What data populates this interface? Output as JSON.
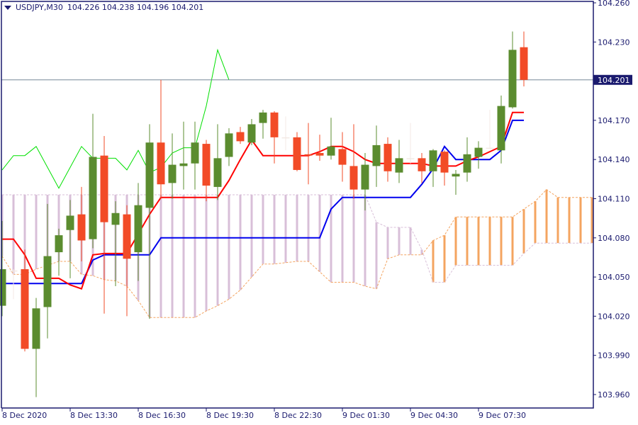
{
  "header": {
    "symbol_timeframe": "USDJPY,M30",
    "ohlc": "104.226 104.238 104.196 104.201"
  },
  "colors": {
    "frame": "#1a1a6e",
    "bull": "#5b8c2f",
    "bear": "#f24b27",
    "doji": "#f3e9e4",
    "tenkan": "#ff0000",
    "kijun": "#0000ee",
    "chikou": "#00e000",
    "span_a": "#f4a460",
    "span_b": "#d8bfd8",
    "price_line": "#778899",
    "price_label_bg": "#1a1a6e"
  },
  "chart_data": {
    "type": "candlestick",
    "ylim": [
      103.955,
      104.262
    ],
    "y_ticks": [
      "104.260",
      "104.230",
      "104.170",
      "104.140",
      "104.110",
      "104.080",
      "104.050",
      "104.020",
      "103.990",
      "103.960"
    ],
    "current_price": "104.201",
    "x_labels": [
      {
        "bar": 0,
        "label": "8 Dec 2020"
      },
      {
        "bar": 6,
        "label": "8 Dec 13:30"
      },
      {
        "bar": 12,
        "label": "8 Dec 16:30"
      },
      {
        "bar": 18,
        "label": "8 Dec 19:30"
      },
      {
        "bar": 24,
        "label": "8 Dec 22:30"
      },
      {
        "bar": 30,
        "label": "9 Dec 01:30"
      },
      {
        "bar": 36,
        "label": "9 Dec 04:30"
      },
      {
        "bar": 42,
        "label": "9 Dec 07:30"
      }
    ],
    "candles": [
      [
        104.028,
        104.093,
        104.02,
        104.056
      ],
      [
        104.055,
        104.056,
        104.033,
        104.055
      ],
      [
        104.056,
        104.071,
        103.993,
        103.995
      ],
      [
        103.995,
        104.034,
        103.958,
        104.026
      ],
      [
        104.027,
        104.106,
        104.003,
        104.066
      ],
      [
        104.069,
        104.087,
        104.051,
        104.082
      ],
      [
        104.086,
        104.109,
        104.049,
        104.097
      ],
      [
        104.098,
        104.119,
        104.062,
        104.078
      ],
      [
        104.079,
        104.175,
        104.072,
        104.142
      ],
      [
        104.143,
        104.158,
        104.022,
        104.092
      ],
      [
        104.09,
        104.108,
        104.043,
        104.099
      ],
      [
        104.098,
        104.105,
        104.02,
        104.064
      ],
      [
        104.069,
        104.122,
        104.047,
        104.105
      ],
      [
        104.103,
        104.167,
        104.018,
        104.153
      ],
      [
        104.153,
        104.201,
        104.11,
        104.121
      ],
      [
        104.122,
        104.16,
        104.11,
        104.136
      ],
      [
        104.135,
        104.169,
        104.117,
        104.137
      ],
      [
        104.137,
        104.169,
        104.117,
        104.153
      ],
      [
        104.152,
        104.155,
        104.108,
        104.12
      ],
      [
        104.119,
        104.167,
        104.109,
        104.141
      ],
      [
        104.142,
        104.164,
        104.135,
        104.16
      ],
      [
        104.161,
        104.165,
        104.152,
        104.154
      ],
      [
        104.153,
        104.171,
        104.151,
        104.167
      ],
      [
        104.168,
        104.178,
        104.156,
        104.176
      ],
      [
        104.176,
        104.177,
        104.137,
        104.157
      ],
      [
        104.157,
        104.173,
        104.147,
        104.157
      ],
      [
        104.157,
        104.161,
        104.131,
        104.132
      ],
      [
        104.144,
        104.168,
        104.121,
        104.143
      ],
      [
        104.145,
        104.159,
        104.139,
        104.143
      ],
      [
        104.143,
        104.172,
        104.14,
        104.15
      ],
      [
        104.148,
        104.161,
        104.123,
        104.136
      ],
      [
        104.135,
        104.167,
        104.11,
        104.117
      ],
      [
        104.117,
        104.145,
        104.101,
        104.136
      ],
      [
        104.135,
        104.166,
        104.119,
        104.151
      ],
      [
        104.152,
        104.157,
        104.123,
        104.131
      ],
      [
        104.13,
        104.155,
        104.122,
        104.141
      ],
      [
        104.141,
        104.168,
        104.137,
        104.141
      ],
      [
        104.141,
        104.145,
        104.122,
        104.131
      ],
      [
        104.131,
        104.148,
        104.119,
        104.147
      ],
      [
        104.146,
        104.147,
        104.12,
        104.13
      ],
      [
        104.127,
        104.132,
        104.113,
        104.129
      ],
      [
        104.13,
        104.157,
        104.123,
        104.144
      ],
      [
        104.142,
        104.154,
        104.133,
        104.149
      ],
      [
        104.149,
        104.178,
        104.148,
        104.149
      ],
      [
        104.147,
        104.189,
        104.137,
        104.181
      ],
      [
        104.18,
        104.238,
        104.179,
        104.224
      ],
      [
        104.226,
        104.238,
        104.196,
        104.201
      ]
    ],
    "tenkan_sen": [
      104.079,
      104.079,
      104.067,
      104.049,
      104.049,
      104.049,
      104.044,
      104.041,
      104.067,
      104.068,
      104.068,
      104.068,
      104.083,
      104.098,
      104.111,
      104.111,
      104.111,
      104.111,
      104.111,
      104.111,
      104.124,
      104.14,
      104.155,
      104.143,
      104.143,
      104.143,
      104.143,
      104.143,
      104.146,
      104.15,
      104.15,
      104.146,
      104.14,
      104.137,
      104.137,
      104.137,
      104.137,
      104.137,
      104.135,
      104.135,
      104.135,
      104.139,
      104.142,
      104.146,
      104.15,
      104.176,
      104.176
    ],
    "kijun_sen": [
      104.045,
      104.045,
      104.045,
      104.045,
      104.045,
      104.045,
      104.045,
      104.045,
      104.063,
      104.067,
      104.067,
      104.067,
      104.067,
      104.067,
      104.08,
      104.08,
      104.08,
      104.08,
      104.08,
      104.08,
      104.08,
      104.08,
      104.08,
      104.08,
      104.08,
      104.08,
      104.08,
      104.08,
      104.08,
      104.102,
      104.111,
      104.111,
      104.111,
      104.111,
      104.111,
      104.111,
      104.111,
      104.121,
      104.133,
      104.15,
      104.14,
      104.14,
      104.14,
      104.14,
      104.147,
      104.17,
      104.17
    ],
    "chikou_span": [
      104.132,
      104.143,
      104.143,
      104.15,
      104.134,
      104.118,
      104.134,
      104.15,
      104.141,
      104.141,
      104.141,
      104.132,
      104.147,
      104.13,
      104.134,
      104.145,
      104.149,
      104.149,
      104.181,
      104.224,
      104.201
    ],
    "senkou_span_a": [
      104.066,
      104.052,
      104.052,
      104.056,
      104.059,
      104.062,
      104.062,
      104.052,
      104.051,
      104.048,
      104.047,
      104.043,
      104.032,
      104.019,
      104.019,
      104.019,
      104.019,
      104.019,
      104.024,
      104.028,
      104.033,
      104.04,
      104.05,
      104.06,
      104.06,
      104.061,
      104.062,
      104.062,
      104.054,
      104.046,
      104.046,
      104.046,
      104.043,
      104.041,
      104.064,
      104.067,
      104.067,
      104.067,
      104.078,
      104.082,
      104.096,
      104.096,
      104.096,
      104.096,
      104.096,
      104.096,
      104.102,
      104.108,
      104.117,
      104.111,
      104.111,
      104.111,
      104.111
    ],
    "senkou_span_b": [
      104.113,
      104.113,
      104.113,
      104.113,
      104.113,
      104.113,
      104.113,
      104.113,
      104.113,
      104.113,
      104.113,
      104.113,
      104.113,
      104.113,
      104.113,
      104.113,
      104.113,
      104.113,
      104.113,
      104.113,
      104.113,
      104.113,
      104.113,
      104.113,
      104.113,
      104.113,
      104.113,
      104.113,
      104.113,
      104.113,
      104.113,
      104.113,
      104.113,
      104.092,
      104.088,
      104.088,
      104.088,
      104.071,
      104.046,
      104.046,
      104.059,
      104.059,
      104.059,
      104.059,
      104.059,
      104.059,
      104.068,
      104.076,
      104.076,
      104.076,
      104.076,
      104.076,
      104.076
    ]
  }
}
